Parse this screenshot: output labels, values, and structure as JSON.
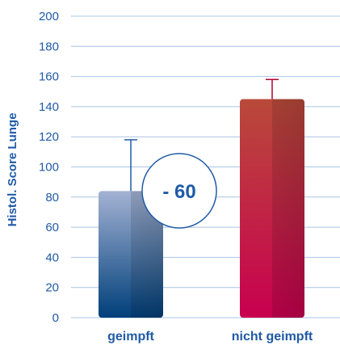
{
  "chart_data": {
    "type": "bar",
    "categories": [
      "geimpft",
      "nicht geimpft"
    ],
    "values": [
      84,
      145
    ],
    "error_upper": [
      118,
      158
    ],
    "ylabel": "Histol. Score Lunge",
    "xlabel": "",
    "ylim": [
      0,
      200
    ],
    "yticks": [
      0,
      20,
      40,
      60,
      80,
      100,
      120,
      140,
      160,
      180,
      200
    ],
    "grid": true,
    "annotation": "- 60",
    "colors": {
      "geimpft": [
        "#a3b2d3",
        "#003f7a"
      ],
      "nicht_geimpft": [
        "#b94a3a",
        "#c8004f"
      ],
      "axis_text": "#1f5aa6",
      "grid": "#a9c4e4",
      "error_bar": "#1f5aa6",
      "error_bar_2": "#b0002f"
    }
  }
}
